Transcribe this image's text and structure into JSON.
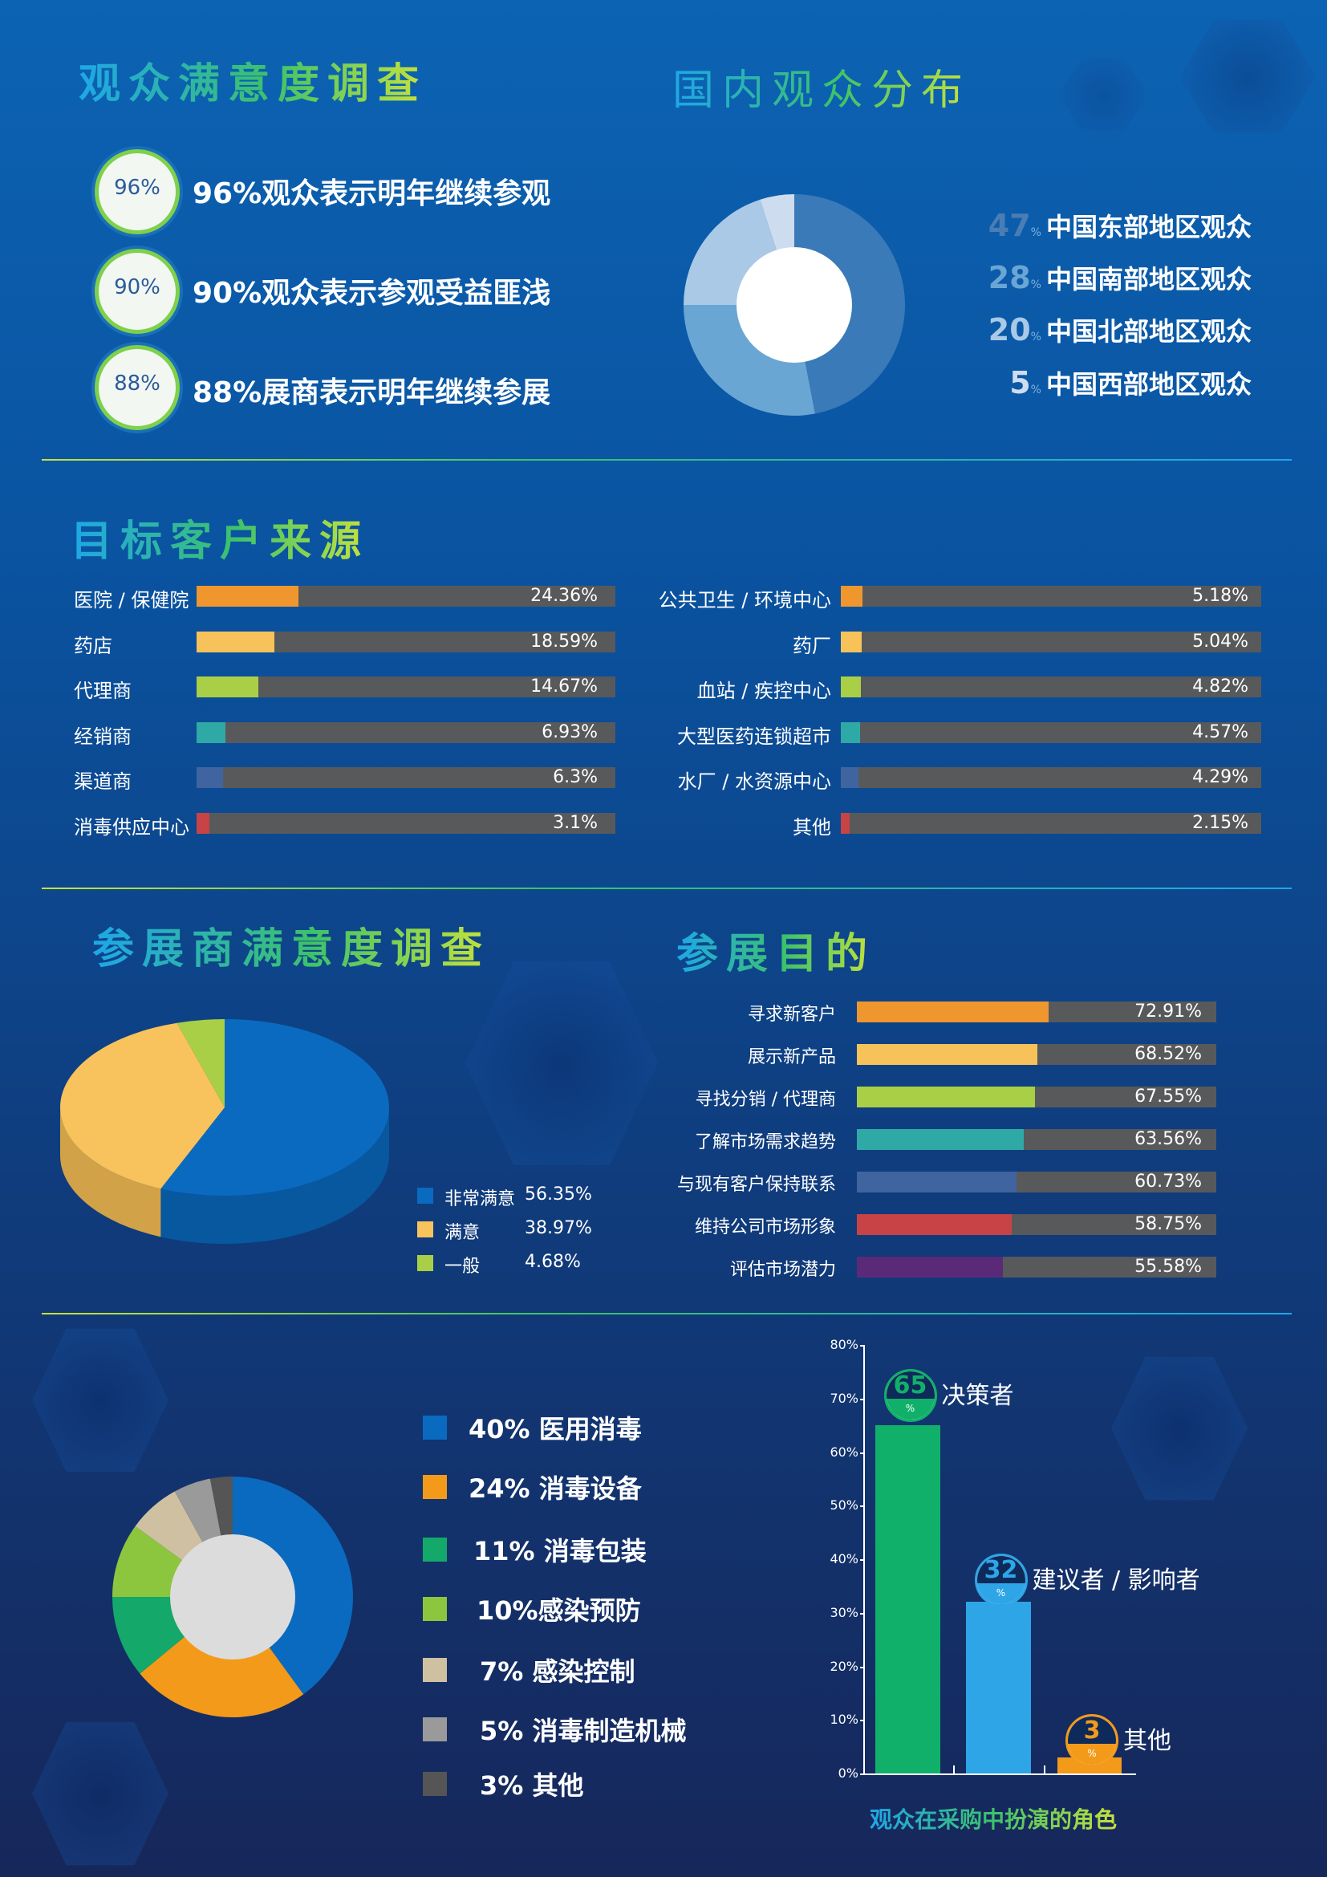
{
  "section1": {
    "title": "观众满意度调查",
    "items": [
      {
        "badge": "96%",
        "text": "96%观众表示明年继续参观"
      },
      {
        "badge": "90%",
        "text": "90%观众表示参观受益匪浅"
      },
      {
        "badge": "88%",
        "text": "88%展商表示明年继续参展"
      }
    ]
  },
  "section2": {
    "title": "国内观众分布",
    "percent_sign": "%",
    "regions": [
      {
        "value": "47",
        "label": "中国东部地区观众"
      },
      {
        "value": "28",
        "label": "中国南部地区观众"
      },
      {
        "value": "20",
        "label": "中国北部地区观众"
      },
      {
        "value": "5",
        "label": "中国西部地区观众"
      }
    ]
  },
  "section3": {
    "title": "目标客户来源",
    "left": [
      {
        "label": "医院 / 保健院",
        "value": "24.36%"
      },
      {
        "label": "药店",
        "value": "18.59%"
      },
      {
        "label": "代理商",
        "value": "14.67%"
      },
      {
        "label": "经销商",
        "value": "6.93%"
      },
      {
        "label": "渠道商",
        "value": "6.3%"
      },
      {
        "label": "消毒供应中心",
        "value": "3.1%"
      }
    ],
    "right": [
      {
        "label": "公共卫生 / 环境中心",
        "value": "5.18%"
      },
      {
        "label": "药厂",
        "value": "5.04%"
      },
      {
        "label": "血站 / 疾控中心",
        "value": "4.82%"
      },
      {
        "label": "大型医药连锁超市",
        "value": "4.57%"
      },
      {
        "label": "水厂 / 水资源中心",
        "value": "4.29%"
      },
      {
        "label": "其他",
        "value": "2.15%"
      }
    ]
  },
  "section4": {
    "title": "参展商满意度调查",
    "legend": [
      {
        "label": "非常满意",
        "value": "56.35%"
      },
      {
        "label": "满意",
        "value": "38.97%"
      },
      {
        "label": "一般",
        "value": "4.68%"
      }
    ]
  },
  "section5": {
    "title": "参展目的",
    "items": [
      {
        "label": "寻求新客户",
        "value": "72.91%"
      },
      {
        "label": "展示新产品",
        "value": "68.52%"
      },
      {
        "label": "寻找分销 / 代理商",
        "value": "67.55%"
      },
      {
        "label": "了解市场需求趋势",
        "value": "63.56%"
      },
      {
        "label": "与现有客户保持联系",
        "value": "60.73%"
      },
      {
        "label": "维持公司市场形象",
        "value": "58.75%"
      },
      {
        "label": "评估市场潜力",
        "value": "55.58%"
      }
    ]
  },
  "section6": {
    "legend": [
      {
        "text": "40% 医用消毒"
      },
      {
        "text": "24% 消毒设备"
      },
      {
        "text": "11% 消毒包装"
      },
      {
        "text": "10%感染预防"
      },
      {
        "text": "7% 感染控制"
      },
      {
        "text": "5% 消毒制造机械"
      },
      {
        "text": "3% 其他"
      }
    ]
  },
  "section7": {
    "caption": "观众在采购中扮演的角色",
    "percent_sign": "%",
    "y_ticks": [
      "80%",
      "70%",
      "60%",
      "50%",
      "40%",
      "30%",
      "20%",
      "10%",
      "0%"
    ],
    "roles": [
      {
        "value": "65",
        "label": "决策者"
      },
      {
        "value": "32",
        "label": "建议者 / 影响者"
      },
      {
        "value": "3",
        "label": "其他"
      }
    ]
  },
  "colors": {
    "bars": [
      "#f0962e",
      "#f7c25a",
      "#a9cf46",
      "#2fa9a6",
      "#3f64a0",
      "#c84346"
    ],
    "purpose_bars": [
      "#f0962e",
      "#f7c25a",
      "#a9cf46",
      "#2fa9a6",
      "#3f64a0",
      "#c84346",
      "#5a2a78"
    ],
    "domestic_pie": [
      "#3a7ab8",
      "#6aa6d4",
      "#a9c9e6",
      "#cddcef"
    ],
    "exhibitor_pie": [
      "#0a6ac0",
      "#f8c25c",
      "#a9cf46"
    ],
    "category_donut": [
      "#0a6ac0",
      "#f39a1a",
      "#14a86a",
      "#8cc63e",
      "#cfc0a2",
      "#9a9a9a",
      "#555555"
    ],
    "roles": [
      "#11b06a",
      "#2ea5e6",
      "#f39a1a"
    ]
  },
  "chart_data": [
    {
      "type": "pie",
      "title": "国内观众分布",
      "categories": [
        "中国东部地区观众",
        "中国南部地区观众",
        "中国北部地区观众",
        "中国西部地区观众"
      ],
      "values": [
        47,
        28,
        20,
        5
      ]
    },
    {
      "type": "bar",
      "title": "目标客户来源",
      "categories": [
        "医院 / 保健院",
        "药店",
        "代理商",
        "经销商",
        "渠道商",
        "消毒供应中心",
        "公共卫生 / 环境中心",
        "药厂",
        "血站 / 疾控中心",
        "大型医药连锁超市",
        "水厂 / 水资源中心",
        "其他"
      ],
      "values": [
        24.36,
        18.59,
        14.67,
        6.93,
        6.3,
        3.1,
        5.18,
        5.04,
        4.82,
        4.57,
        4.29,
        2.15
      ]
    },
    {
      "type": "pie",
      "title": "参展商满意度调查",
      "categories": [
        "非常满意",
        "满意",
        "一般"
      ],
      "values": [
        56.35,
        38.97,
        4.68
      ]
    },
    {
      "type": "bar",
      "title": "参展目的",
      "categories": [
        "寻求新客户",
        "展示新产品",
        "寻找分销 / 代理商",
        "了解市场需求趋势",
        "与现有客户保持联系",
        "维持公司市场形象",
        "评估市场潜力"
      ],
      "values": [
        72.91,
        68.52,
        67.55,
        63.56,
        60.73,
        58.75,
        55.58
      ]
    },
    {
      "type": "pie",
      "categories": [
        "医用消毒",
        "消毒设备",
        "消毒包装",
        "感染预防",
        "感染控制",
        "消毒制造机械",
        "其他"
      ],
      "values": [
        40,
        24,
        11,
        10,
        7,
        5,
        3
      ]
    },
    {
      "type": "bar",
      "title": "观众在采购中扮演的角色",
      "categories": [
        "决策者",
        "建议者 / 影响者",
        "其他"
      ],
      "values": [
        65,
        32,
        3
      ],
      "ylim": [
        0,
        80
      ]
    }
  ]
}
